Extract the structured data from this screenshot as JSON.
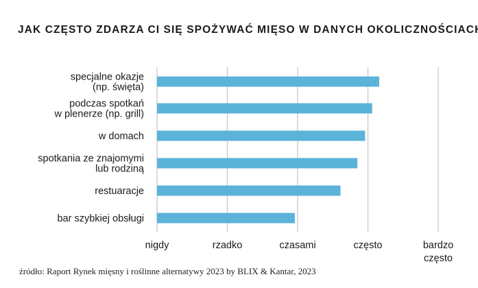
{
  "chart_data": {
    "type": "bar",
    "orientation": "horizontal",
    "title": "JAK CZĘSTO ZDARZA CI SIĘ SPOŻYWAĆ MIĘSO W DANYCH OKOLICZNOŚCIACH?",
    "categories": [
      [
        "specjalne okazje",
        "(np. święta)"
      ],
      [
        "podczas spotkań",
        "w plenerze (np. grill)"
      ],
      [
        "w domach"
      ],
      [
        "spotkania ze znajomymi",
        "lub rodziną"
      ],
      [
        "restuaracje"
      ],
      [
        "bar szybkiej obsługi"
      ]
    ],
    "values": [
      4.16,
      4.06,
      3.96,
      3.85,
      3.61,
      2.96
    ],
    "xlim": [
      1,
      5
    ],
    "xticks": [
      1,
      2,
      3,
      4,
      5
    ],
    "xtick_labels": [
      [
        "nigdy"
      ],
      [
        "rzadko"
      ],
      [
        "czasami"
      ],
      [
        "często"
      ],
      [
        "bardzo",
        "często"
      ]
    ],
    "grid": true,
    "bar_color": "#5bb3d9",
    "grid_color": "#c8c8c8",
    "xlabel": "",
    "ylabel": ""
  },
  "source": "źródło: Raport Rynek mięsny i roślinne alternatywy 2023 by BLIX & Kantar, 2023"
}
